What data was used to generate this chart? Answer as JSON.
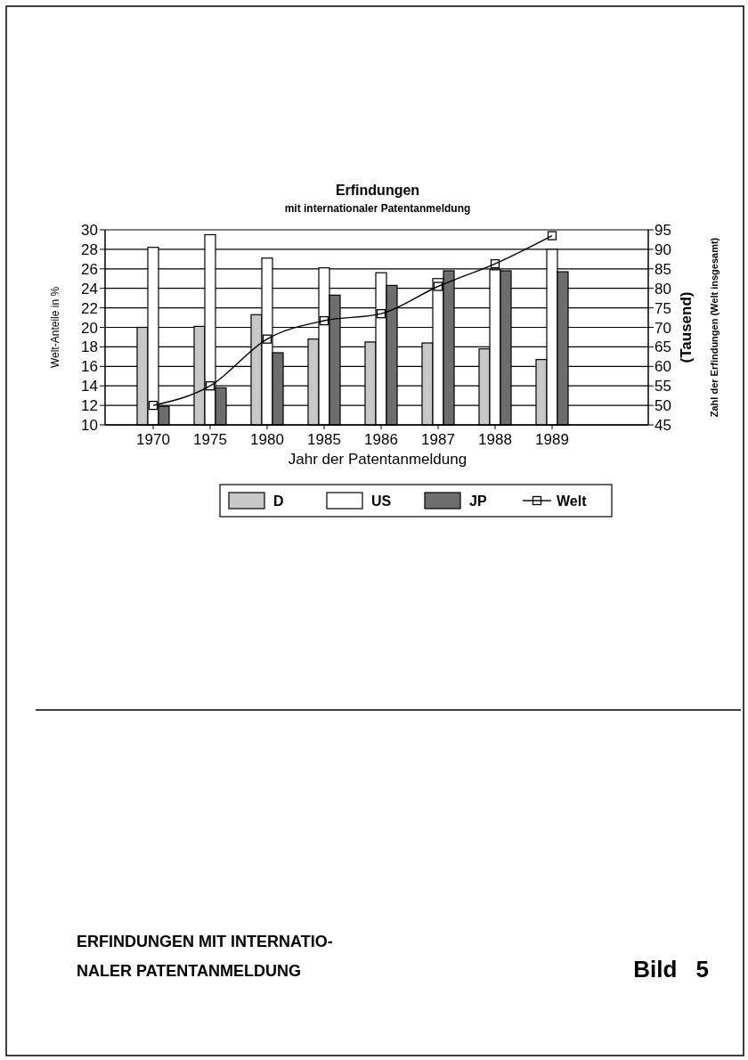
{
  "chart_data": {
    "type": "bar",
    "title": "Erfindungen",
    "subtitle": "mit internationaler Patentanmeldung",
    "xlabel": "Jahr der Patentanmeldung",
    "ylabel": "Welt-Anteile in %",
    "y2label": "(Tausend)\nZahl der Erfindungen (Welt insgesamt)",
    "categories": [
      "1970",
      "1975",
      "1980",
      "1985",
      "1986",
      "1987",
      "1988",
      "1989"
    ],
    "series": [
      {
        "name": "D",
        "color": "#c8c8c8",
        "values": [
          20.0,
          20.1,
          21.3,
          18.8,
          18.5,
          18.4,
          17.8,
          16.7
        ]
      },
      {
        "name": "US",
        "color": "#ffffff",
        "values": [
          28.2,
          29.5,
          27.1,
          26.1,
          25.6,
          25.0,
          25.9,
          28.0
        ]
      },
      {
        "name": "JP",
        "color": "#6e6e6e",
        "values": [
          11.9,
          13.8,
          17.4,
          23.3,
          24.3,
          25.8,
          25.8,
          25.7
        ]
      },
      {
        "name": "Welt",
        "type": "line",
        "axis": "y2",
        "color": "#000000",
        "values": [
          50,
          55,
          67,
          71.7,
          73.5,
          80.5,
          86.3,
          93.5
        ]
      }
    ],
    "ylim": [
      10,
      30
    ],
    "yticks": [
      10,
      12,
      14,
      16,
      18,
      20,
      22,
      24,
      26,
      28,
      30
    ],
    "y2lim": [
      45,
      95
    ],
    "y2ticks": [
      45,
      50,
      55,
      60,
      65,
      70,
      75,
      80,
      85,
      90,
      95
    ],
    "grid": "y",
    "legend": "bottom",
    "marker": "square",
    "annotations": [
      "ERFINDUNGEN MIT INTERNATIO-\nNALER PATENTANMELDUNG",
      "Bild 5"
    ]
  }
}
